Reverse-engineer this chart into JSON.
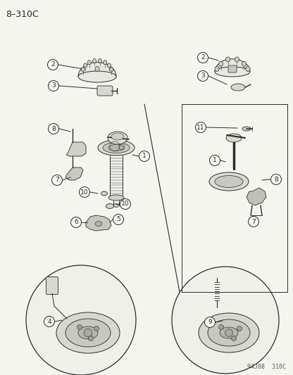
{
  "title": "8–310C",
  "footer": "94J08  310C",
  "bg_color": "#f5f5f0",
  "line_color": "#2a2a2a",
  "fig_width": 4.16,
  "fig_height": 5.33,
  "dpi": 100
}
